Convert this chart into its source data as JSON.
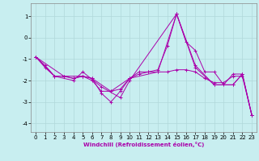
{
  "xlabel": "Windchill (Refroidissement éolien,°C)",
  "background_color": "#c8eef0",
  "grid_color": "#b0d8da",
  "line_color": "#aa00aa",
  "xlim": [
    -0.5,
    23.5
  ],
  "ylim": [
    -4.4,
    1.6
  ],
  "yticks": [
    -4,
    -3,
    -2,
    -1,
    0,
    1
  ],
  "xticks": [
    0,
    1,
    2,
    3,
    4,
    5,
    6,
    7,
    8,
    9,
    10,
    11,
    12,
    13,
    14,
    15,
    16,
    17,
    18,
    19,
    20,
    21,
    22,
    23
  ],
  "series_x": [
    [
      0,
      1,
      2,
      3,
      4,
      5,
      6,
      7,
      8,
      9,
      10,
      11,
      12,
      13,
      14,
      15,
      16,
      17,
      18,
      19,
      20,
      21,
      22,
      23
    ],
    [
      0,
      1,
      2,
      3,
      4,
      5,
      6,
      7,
      8,
      9,
      10,
      11,
      12,
      13,
      14,
      15,
      16,
      17,
      18,
      19,
      20,
      21,
      22,
      23
    ],
    [
      0,
      2,
      4,
      5,
      7,
      9,
      10,
      15,
      17,
      19,
      21,
      22,
      23
    ],
    [
      0,
      3,
      5,
      6,
      8,
      10,
      13,
      15,
      17,
      19,
      21,
      22,
      23
    ]
  ],
  "series_y": [
    [
      -0.9,
      -1.4,
      -1.8,
      -1.8,
      -1.9,
      -1.8,
      -2.0,
      -2.5,
      -2.5,
      -2.4,
      -1.9,
      -1.7,
      -1.6,
      -1.6,
      -1.6,
      -1.5,
      -1.5,
      -1.6,
      -1.9,
      -2.1,
      -2.1,
      -1.8,
      -1.8,
      -3.6
    ],
    [
      -0.9,
      -1.3,
      -1.8,
      -1.8,
      -1.9,
      -1.8,
      -1.9,
      -2.6,
      -3.0,
      -2.5,
      -1.9,
      -1.6,
      -1.6,
      -1.5,
      -0.4,
      1.1,
      -0.2,
      -0.6,
      -1.6,
      -1.6,
      -2.2,
      -1.7,
      -1.7,
      -3.6
    ],
    [
      -0.9,
      -1.8,
      -2.0,
      -1.6,
      -2.3,
      -2.8,
      -2.0,
      1.1,
      -1.4,
      -2.2,
      -2.2,
      -1.7,
      -3.6
    ],
    [
      -0.9,
      -1.8,
      -1.8,
      -1.9,
      -2.5,
      -1.9,
      -1.6,
      1.1,
      -1.3,
      -2.2,
      -2.2,
      -1.7,
      -3.6
    ]
  ],
  "tick_fontsize": 5,
  "label_fontsize": 5,
  "linewidth": 0.7,
  "markersize": 3
}
